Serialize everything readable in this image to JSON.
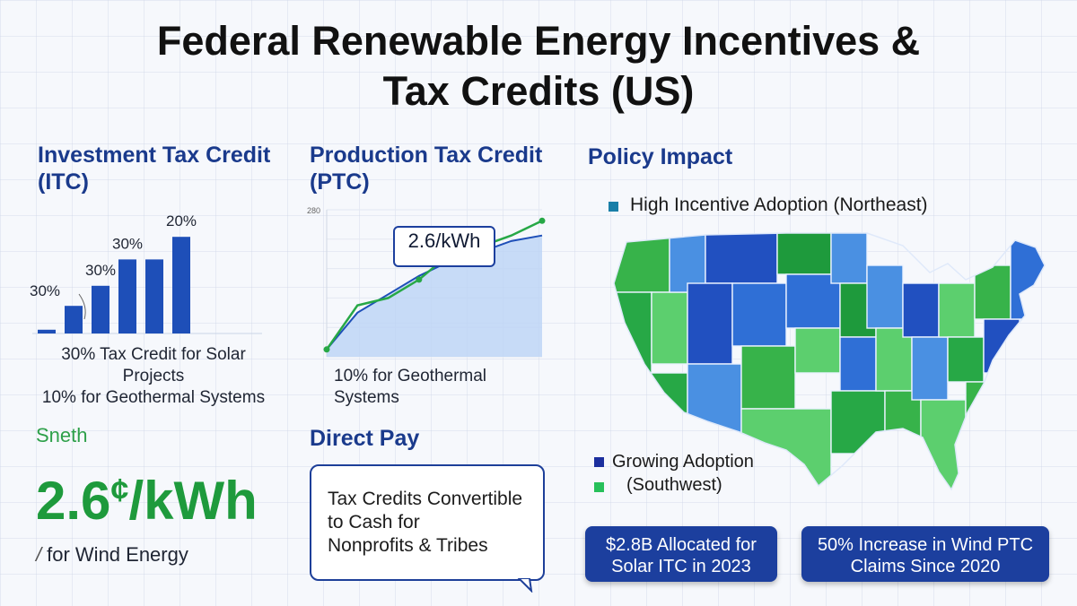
{
  "title_line1": "Federal Renewable Energy Incentives &",
  "title_line2": "Tax Credits (US)",
  "itc": {
    "title_line1": "Investment Tax Credit",
    "title_line2": "(ITC)",
    "caption_line1": "30% Tax Credit for Solar Projects",
    "caption_line2": "10% for Geothermal Systems"
  },
  "ptc": {
    "title_line1": "Production Tax Credit",
    "title_line2": "(PTC)",
    "callout_value": "2.6/kWh",
    "callout_sub": "",
    "caption": "10% for Geothermal Systems"
  },
  "policy": {
    "title": "Policy Impact",
    "legend_high": "High Incentive Adoption (Northeast)",
    "legend_growing_line1": "Growing Adoption",
    "legend_growing_line2": "(Southwest)",
    "stat1_line1": "$2.8B Allocated for",
    "stat1_line2": "Solar ITC in 2023",
    "stat2_line1": "50% Increase in Wind PTC",
    "stat2_line2": "Claims Since 2020"
  },
  "wind": {
    "label": "Sneth",
    "value": "2.6",
    "unit": "¢",
    "per": "/kWh",
    "caption": "for Wind Energy"
  },
  "direct_pay": {
    "title": "Direct Pay",
    "line1": "Tax Credits Convertible",
    "line2": "to Cash for",
    "line3": "Nonprofits & Tribes"
  },
  "colors": {
    "navy": "#1c3f9e",
    "blue": "#1e4fb8",
    "green": "#27a846",
    "map_dark_blue": "#2150c0",
    "map_light_blue": "#4a90e2",
    "map_green": "#37b34a",
    "map_light_green": "#5ccf6e"
  },
  "chart_data": [
    {
      "type": "bar",
      "categories": [
        "",
        "",
        "",
        "",
        "",
        ""
      ],
      "values": [
        3,
        22,
        38,
        59,
        59,
        77
      ],
      "labels": [
        "30%",
        "",
        "30%",
        "30%",
        "",
        "20%"
      ],
      "ylim": [
        0,
        100
      ]
    },
    {
      "type": "area",
      "yticks": [
        "280",
        "",
        "",
        "",
        "",
        ""
      ],
      "series": [
        {
          "x": [
            0,
            1,
            2,
            3,
            4,
            5,
            6,
            7
          ],
          "values": [
            4,
            24,
            34,
            44,
            52,
            57,
            63,
            66
          ]
        },
        {
          "x": [
            0,
            1,
            2,
            3,
            4,
            5,
            6,
            7
          ],
          "values": [
            4,
            28,
            32,
            42,
            56,
            60,
            66,
            74
          ]
        }
      ],
      "ylim": [
        0,
        80
      ]
    }
  ]
}
